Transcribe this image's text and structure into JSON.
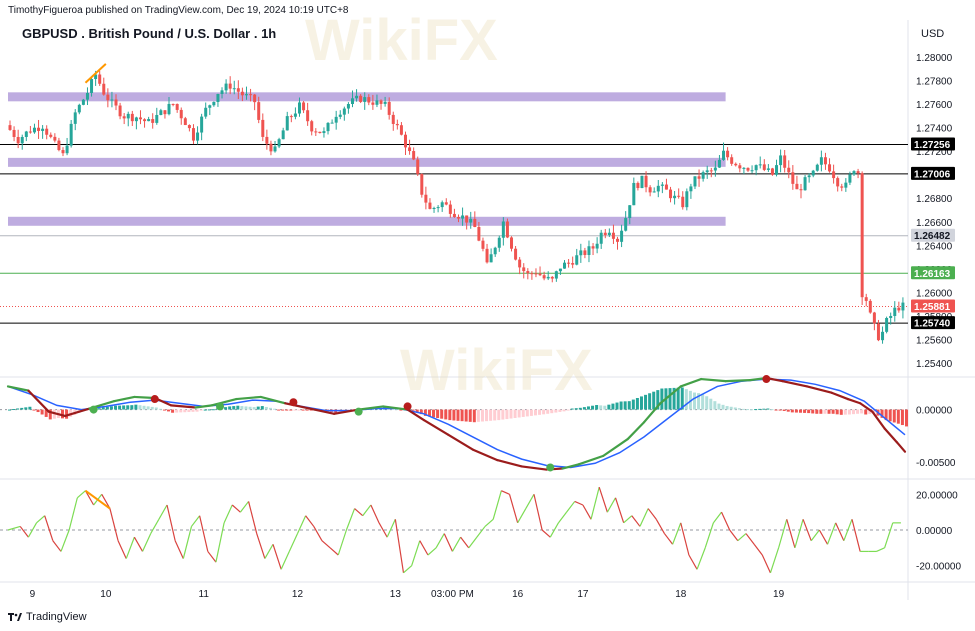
{
  "header": {
    "publisher": "TimothyFigueroa published on TradingView.com, Dec 19, 2024 10:19 UTC+8",
    "title": "GBPUSD . British Pound / U.S. Dollar . 1h",
    "currency": "USD",
    "brand": "TradingView"
  },
  "colors": {
    "up": "#26a69a",
    "down": "#ef5350",
    "zone": "#b39ddb",
    "macd_signal": "#9b1c1c",
    "macd_line": "#2962ff",
    "rsi_up": "#7ddc54",
    "rsi_down": "#d9433f",
    "divergence": "#ff9800"
  },
  "chart_data": [
    {
      "type": "candlestick",
      "symbol": "GBPUSD",
      "timeframe": "1h",
      "x_tick_labels": [
        "9",
        "10",
        "11",
        "12",
        "13",
        "03:00 PM",
        "16",
        "17",
        "18",
        "19"
      ],
      "ylim": [
        1.253,
        1.281
      ],
      "y_ticks": [
        "1.28000",
        "1.27800",
        "1.27600",
        "1.27400",
        "1.27200",
        "1.27000",
        "1.26800",
        "1.26600",
        "1.26400",
        "1.26200",
        "1.26000",
        "1.25800",
        "1.25600",
        "1.25400"
      ],
      "close_path": [
        [
          0,
          1.2742
        ],
        [
          3,
          1.273
        ],
        [
          6,
          1.2738
        ],
        [
          9,
          1.2742
        ],
        [
          12,
          1.2725
        ],
        [
          14,
          1.2716
        ],
        [
          17,
          1.2752
        ],
        [
          20,
          1.277
        ],
        [
          22,
          1.2785
        ],
        [
          24,
          1.277
        ],
        [
          26,
          1.276
        ],
        [
          29,
          1.275
        ],
        [
          32,
          1.2749
        ],
        [
          35,
          1.2744
        ],
        [
          38,
          1.2752
        ],
        [
          41,
          1.276
        ],
        [
          44,
          1.2745
        ],
        [
          46,
          1.2732
        ],
        [
          49,
          1.2755
        ],
        [
          52,
          1.277
        ],
        [
          55,
          1.2776
        ],
        [
          58,
          1.2768
        ],
        [
          61,
          1.2762
        ],
        [
          63,
          1.273
        ],
        [
          66,
          1.272
        ],
        [
          69,
          1.2746
        ],
        [
          72,
          1.2758
        ],
        [
          75,
          1.274
        ],
        [
          78,
          1.2735
        ],
        [
          81,
          1.2752
        ],
        [
          84,
          1.276
        ],
        [
          87,
          1.2765
        ],
        [
          90,
          1.2762
        ],
        [
          93,
          1.2758
        ],
        [
          96,
          1.274
        ],
        [
          98,
          1.2726
        ],
        [
          100,
          1.271
        ],
        [
          102,
          1.2685
        ],
        [
          104,
          1.267
        ],
        [
          107,
          1.2676
        ],
        [
          110,
          1.2668
        ],
        [
          113,
          1.2662
        ],
        [
          115,
          1.2655
        ],
        [
          117,
          1.2636
        ],
        [
          118,
          1.2622
        ],
        [
          120,
          1.264
        ],
        [
          122,
          1.266
        ],
        [
          124,
          1.264
        ],
        [
          126,
          1.2622
        ],
        [
          128,
          1.2615
        ],
        [
          130,
          1.2618
        ],
        [
          132,
          1.2612
        ],
        [
          134,
          1.261
        ],
        [
          136,
          1.2622
        ],
        [
          138,
          1.2625
        ],
        [
          140,
          1.263
        ],
        [
          142,
          1.2634
        ],
        [
          144,
          1.2638
        ],
        [
          146,
          1.265
        ],
        [
          148,
          1.2654
        ],
        [
          150,
          1.2645
        ],
        [
          152,
          1.2664
        ],
        [
          154,
          1.269
        ],
        [
          156,
          1.2695
        ],
        [
          158,
          1.2688
        ],
        [
          160,
          1.269
        ],
        [
          162,
          1.2686
        ],
        [
          164,
          1.268
        ],
        [
          166,
          1.2675
        ],
        [
          168,
          1.2692
        ],
        [
          170,
          1.2698
        ],
        [
          172,
          1.2702
        ],
        [
          174,
          1.2704
        ],
        [
          176,
          1.2718
        ],
        [
          178,
          1.2712
        ],
        [
          180,
          1.2708
        ],
        [
          182,
          1.2706
        ],
        [
          184,
          1.2708
        ],
        [
          186,
          1.2704
        ],
        [
          188,
          1.27
        ],
        [
          190,
          1.2714
        ],
        [
          192,
          1.27
        ],
        [
          194,
          1.2686
        ],
        [
          196,
          1.2694
        ],
        [
          198,
          1.27
        ],
        [
          200,
          1.2712
        ],
        [
          202,
          1.2706
        ],
        [
          204,
          1.2694
        ],
        [
          206,
          1.269
        ],
        [
          208,
          1.2706
        ],
        [
          209,
          1.2702
        ],
        [
          210,
          1.26
        ],
        [
          211,
          1.2594
        ],
        [
          212,
          1.258
        ],
        [
          213,
          1.257
        ],
        [
          214,
          1.2563
        ],
        [
          215,
          1.2566
        ],
        [
          216,
          1.2575
        ],
        [
          217,
          1.258
        ],
        [
          218,
          1.2585
        ],
        [
          219,
          1.2588
        ]
      ],
      "horizontal_lines": [
        {
          "label": "1.27256",
          "value": 1.27256,
          "style": "black"
        },
        {
          "label": "1.27006",
          "value": 1.27006,
          "style": "black"
        },
        {
          "label": "1.26482",
          "value": 1.26482,
          "style": "gray"
        },
        {
          "label": "1.26163",
          "value": 1.26163,
          "style": "green"
        },
        {
          "label": "1.25881",
          "value": 1.25881,
          "style": "red-dotted"
        },
        {
          "label": "1.25740",
          "value": 1.2574,
          "style": "black"
        }
      ],
      "zones": [
        {
          "value": 1.27656,
          "end_bar": 176
        },
        {
          "value": 1.271,
          "end_bar": 176
        },
        {
          "value": 1.266,
          "end_bar": 176
        }
      ],
      "divergence_line": [
        [
          19,
          1.2778
        ],
        [
          24,
          1.2794
        ]
      ]
    },
    {
      "type": "line",
      "name": "MACD",
      "ylim": [
        -0.0065,
        0.003
      ],
      "y_ticks": [
        "0.00000",
        "-0.00500"
      ],
      "macd_path": [
        [
          0,
          0.0022
        ],
        [
          5,
          0.0018
        ],
        [
          10,
          -0.0002
        ],
        [
          14,
          -0.0006
        ],
        [
          20,
          0.0001
        ],
        [
          26,
          0.0008
        ],
        [
          31,
          0.0012
        ],
        [
          36,
          0.0011
        ],
        [
          40,
          0.0004
        ],
        [
          46,
          0.0002
        ],
        [
          50,
          0.0004
        ],
        [
          56,
          0.001
        ],
        [
          62,
          0.0012
        ],
        [
          68,
          0.0006
        ],
        [
          74,
          0.0001
        ],
        [
          80,
          -0.0004
        ],
        [
          86,
          0.0
        ],
        [
          92,
          0.0003
        ],
        [
          98,
          0.0
        ],
        [
          102,
          -0.001
        ],
        [
          108,
          -0.0024
        ],
        [
          114,
          -0.0038
        ],
        [
          120,
          -0.0048
        ],
        [
          126,
          -0.0054
        ],
        [
          132,
          -0.0057
        ],
        [
          136,
          -0.0056
        ],
        [
          140,
          -0.0052
        ],
        [
          146,
          -0.0044
        ],
        [
          152,
          -0.0028
        ],
        [
          156,
          -0.0012
        ],
        [
          160,
          0.0006
        ],
        [
          165,
          0.0022
        ],
        [
          170,
          0.0029
        ],
        [
          176,
          0.0027
        ],
        [
          182,
          0.0028
        ],
        [
          186,
          0.003
        ],
        [
          190,
          0.0027
        ],
        [
          196,
          0.0022
        ],
        [
          202,
          0.0016
        ],
        [
          206,
          0.001
        ],
        [
          209,
          0.0006
        ],
        [
          212,
          -0.0002
        ],
        [
          215,
          -0.0018
        ],
        [
          218,
          -0.0031
        ],
        [
          220,
          -0.004
        ]
      ],
      "signal_path": [
        [
          0,
          0.0022
        ],
        [
          6,
          0.0014
        ],
        [
          12,
          0.0004
        ],
        [
          18,
          0.0
        ],
        [
          24,
          0.0003
        ],
        [
          30,
          0.0007
        ],
        [
          36,
          0.0009
        ],
        [
          42,
          0.0006
        ],
        [
          48,
          0.0003
        ],
        [
          54,
          0.0005
        ],
        [
          60,
          0.0009
        ],
        [
          66,
          0.0008
        ],
        [
          72,
          0.0003
        ],
        [
          78,
          -0.0001
        ],
        [
          84,
          -0.0001
        ],
        [
          90,
          0.0001
        ],
        [
          96,
          0.0001
        ],
        [
          102,
          -0.0004
        ],
        [
          108,
          -0.0014
        ],
        [
          114,
          -0.0026
        ],
        [
          120,
          -0.0038
        ],
        [
          126,
          -0.0047
        ],
        [
          132,
          -0.0053
        ],
        [
          138,
          -0.0055
        ],
        [
          144,
          -0.0051
        ],
        [
          150,
          -0.0041
        ],
        [
          156,
          -0.0026
        ],
        [
          162,
          -0.0008
        ],
        [
          168,
          0.001
        ],
        [
          174,
          0.0022
        ],
        [
          180,
          0.0027
        ],
        [
          186,
          0.0029
        ],
        [
          192,
          0.0028
        ],
        [
          198,
          0.0024
        ],
        [
          204,
          0.0018
        ],
        [
          210,
          0.0008
        ],
        [
          215,
          -0.0008
        ],
        [
          220,
          -0.0024
        ]
      ],
      "cross_markers": [
        {
          "bar": 21,
          "value": 0.0,
          "color": "green"
        },
        {
          "bar": 36,
          "value": 0.001,
          "color": "red"
        },
        {
          "bar": 52,
          "value": 0.0003,
          "color": "green"
        },
        {
          "bar": 70,
          "value": 0.0007,
          "color": "red"
        },
        {
          "bar": 86,
          "value": -0.0002,
          "color": "green"
        },
        {
          "bar": 98,
          "value": 0.0003,
          "color": "red"
        },
        {
          "bar": 133,
          "value": -0.0055,
          "color": "green"
        },
        {
          "bar": 186,
          "value": 0.0029,
          "color": "red"
        }
      ]
    },
    {
      "type": "line",
      "name": "oscillator",
      "ylim": [
        -28,
        28
      ],
      "y_ticks": [
        "20.00000",
        "0.00000",
        "-20.00000"
      ],
      "path": [
        [
          0,
          0
        ],
        [
          3,
          2
        ],
        [
          5,
          -4
        ],
        [
          7,
          4
        ],
        [
          9,
          8
        ],
        [
          11,
          -6
        ],
        [
          13,
          -12
        ],
        [
          15,
          0
        ],
        [
          17,
          18
        ],
        [
          19,
          22
        ],
        [
          21,
          14
        ],
        [
          23,
          20
        ],
        [
          25,
          12
        ],
        [
          27,
          -6
        ],
        [
          29,
          -16
        ],
        [
          31,
          -4
        ],
        [
          33,
          -12
        ],
        [
          35,
          -2
        ],
        [
          37,
          6
        ],
        [
          39,
          14
        ],
        [
          41,
          -6
        ],
        [
          43,
          -16
        ],
        [
          45,
          2
        ],
        [
          47,
          8
        ],
        [
          49,
          -12
        ],
        [
          51,
          -18
        ],
        [
          53,
          4
        ],
        [
          55,
          14
        ],
        [
          57,
          10
        ],
        [
          59,
          16
        ],
        [
          61,
          -2
        ],
        [
          63,
          -16
        ],
        [
          65,
          -8
        ],
        [
          67,
          -22
        ],
        [
          69,
          -12
        ],
        [
          71,
          -2
        ],
        [
          73,
          8
        ],
        [
          75,
          2
        ],
        [
          77,
          -6
        ],
        [
          79,
          -10
        ],
        [
          81,
          -14
        ],
        [
          83,
          0
        ],
        [
          85,
          12
        ],
        [
          87,
          8
        ],
        [
          89,
          14
        ],
        [
          91,
          4
        ],
        [
          93,
          -4
        ],
        [
          95,
          6
        ],
        [
          97,
          -24
        ],
        [
          99,
          -20
        ],
        [
          101,
          -6
        ],
        [
          103,
          -14
        ],
        [
          105,
          -10
        ],
        [
          107,
          -2
        ],
        [
          109,
          -12
        ],
        [
          111,
          -4
        ],
        [
          113,
          -10
        ],
        [
          115,
          -4
        ],
        [
          117,
          2
        ],
        [
          119,
          6
        ],
        [
          121,
          22
        ],
        [
          123,
          20
        ],
        [
          125,
          4
        ],
        [
          127,
          12
        ],
        [
          129,
          20
        ],
        [
          131,
          0
        ],
        [
          133,
          -4
        ],
        [
          135,
          4
        ],
        [
          137,
          10
        ],
        [
          139,
          16
        ],
        [
          141,
          14
        ],
        [
          143,
          6
        ],
        [
          145,
          24
        ],
        [
          147,
          10
        ],
        [
          149,
          18
        ],
        [
          151,
          4
        ],
        [
          153,
          8
        ],
        [
          155,
          2
        ],
        [
          157,
          12
        ],
        [
          159,
          6
        ],
        [
          161,
          -2
        ],
        [
          163,
          -8
        ],
        [
          165,
          4
        ],
        [
          167,
          -14
        ],
        [
          169,
          -22
        ],
        [
          171,
          -10
        ],
        [
          173,
          4
        ],
        [
          175,
          10
        ],
        [
          177,
          0
        ],
        [
          179,
          -6
        ],
        [
          181,
          -2
        ],
        [
          183,
          -8
        ],
        [
          185,
          -14
        ],
        [
          187,
          -24
        ],
        [
          189,
          -10
        ],
        [
          191,
          6
        ],
        [
          193,
          -10
        ],
        [
          195,
          6
        ],
        [
          197,
          -6
        ],
        [
          199,
          0
        ],
        [
          201,
          -8
        ],
        [
          203,
          4
        ],
        [
          205,
          -6
        ],
        [
          207,
          6
        ],
        [
          209,
          -12
        ],
        [
          211,
          -12
        ],
        [
          213,
          -12
        ],
        [
          215,
          -10
        ],
        [
          217,
          4
        ],
        [
          219,
          4
        ]
      ],
      "divergence_line": [
        [
          19,
          22
        ],
        [
          25,
          12
        ]
      ]
    }
  ]
}
